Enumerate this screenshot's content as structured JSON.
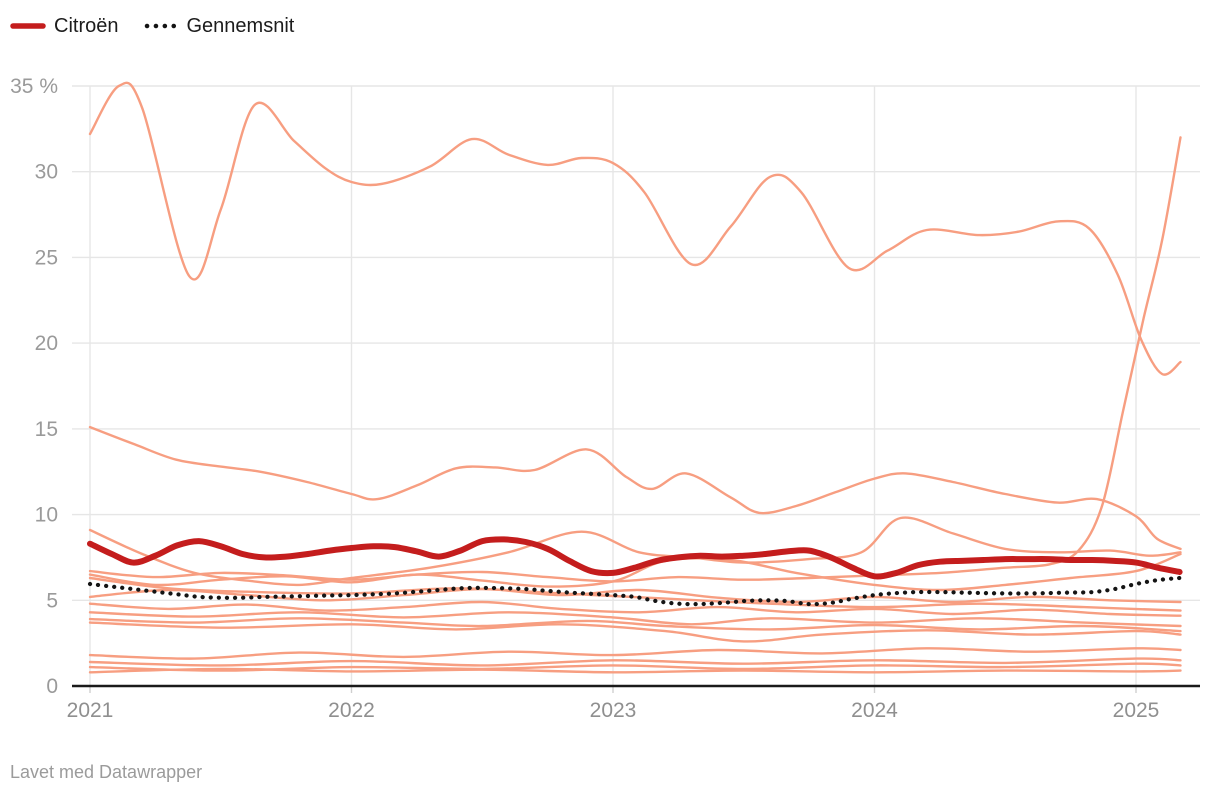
{
  "legend": {
    "items": [
      {
        "label": "Citroën",
        "swatch": "solid-line",
        "color": "#c41d1d"
      },
      {
        "label": "Gennemsnit",
        "swatch": "dotted-line",
        "color": "#141414"
      }
    ]
  },
  "footer": {
    "credit": "Lavet med Datawrapper"
  },
  "colors": {
    "highlight": "#c41d1d",
    "average": "#141414",
    "background_lines": "#f79e81",
    "gridline": "#e6e6e6",
    "axis": "#1a1a1a",
    "tick_label": "#9a9a9a"
  },
  "chart_data": {
    "type": "line",
    "title": "",
    "xlabel": "",
    "ylabel": "",
    "y_axis": {
      "unit": "%",
      "range": [
        0,
        35
      ],
      "ticks": [
        0,
        5,
        10,
        15,
        20,
        25,
        30,
        35
      ],
      "labels": [
        "0",
        "5",
        "10",
        "15",
        "20",
        "25",
        "30",
        "35 %"
      ],
      "grid": true
    },
    "x_axis": {
      "range": [
        2021.0,
        2025.25
      ],
      "ticks": [
        2021,
        2022,
        2023,
        2024,
        2025
      ],
      "labels": [
        "2021",
        "2022",
        "2023",
        "2024",
        "2025"
      ]
    },
    "legend_position": "top-left",
    "series": [
      {
        "name": "Citroën",
        "role": "highlight",
        "start": 2021.0,
        "step_months": 1,
        "values": [
          8.3,
          7.7,
          7.2,
          7.6,
          8.2,
          8.45,
          8.15,
          7.7,
          7.5,
          7.55,
          7.7,
          7.9,
          8.05,
          8.15,
          8.1,
          7.85,
          7.55,
          7.9,
          8.45,
          8.55,
          8.4,
          8.0,
          7.3,
          6.7,
          6.6,
          6.9,
          7.3,
          7.5,
          7.6,
          7.55,
          7.6,
          7.7,
          7.85,
          7.9,
          7.5,
          6.9,
          6.4,
          6.6,
          7.05,
          7.25,
          7.3,
          7.35,
          7.4,
          7.4,
          7.4,
          7.35,
          7.35,
          7.3,
          7.2,
          6.9,
          6.65
        ]
      },
      {
        "name": "Gennemsnit",
        "role": "average",
        "start": 2021.0,
        "step_months": 1,
        "values": [
          5.95,
          5.8,
          5.65,
          5.5,
          5.35,
          5.2,
          5.15,
          5.15,
          5.2,
          5.22,
          5.25,
          5.28,
          5.3,
          5.35,
          5.4,
          5.5,
          5.6,
          5.7,
          5.72,
          5.7,
          5.65,
          5.55,
          5.45,
          5.38,
          5.3,
          5.2,
          4.95,
          4.8,
          4.78,
          4.85,
          4.95,
          5.0,
          4.95,
          4.78,
          4.85,
          5.1,
          5.3,
          5.42,
          5.48,
          5.48,
          5.45,
          5.42,
          5.4,
          5.4,
          5.42,
          5.45,
          5.48,
          5.65,
          5.95,
          6.18,
          6.3
        ]
      }
    ],
    "background_series": [
      {
        "name": "other-1",
        "points": [
          [
            2021.0,
            32.2
          ],
          [
            2021.11,
            35.0
          ],
          [
            2021.2,
            33.7
          ],
          [
            2021.38,
            23.9
          ],
          [
            2021.5,
            27.8
          ],
          [
            2021.63,
            33.9
          ],
          [
            2021.78,
            31.8
          ],
          [
            2021.9,
            30.2
          ],
          [
            2022.0,
            29.4
          ],
          [
            2022.12,
            29.3
          ],
          [
            2022.3,
            30.3
          ],
          [
            2022.46,
            31.9
          ],
          [
            2022.6,
            31.0
          ],
          [
            2022.75,
            30.4
          ],
          [
            2022.88,
            30.8
          ],
          [
            2023.0,
            30.5
          ],
          [
            2023.12,
            28.8
          ],
          [
            2023.3,
            24.6
          ],
          [
            2023.45,
            26.8
          ],
          [
            2023.6,
            29.7
          ],
          [
            2023.72,
            28.8
          ],
          [
            2023.9,
            24.4
          ],
          [
            2024.05,
            25.4
          ],
          [
            2024.2,
            26.6
          ],
          [
            2024.4,
            26.3
          ],
          [
            2024.55,
            26.5
          ],
          [
            2024.7,
            27.1
          ],
          [
            2024.82,
            26.7
          ],
          [
            2024.93,
            24.0
          ],
          [
            2025.02,
            20.2
          ],
          [
            2025.1,
            18.2
          ],
          [
            2025.17,
            18.9
          ]
        ]
      },
      {
        "name": "other-2",
        "points": [
          [
            2021.0,
            15.1
          ],
          [
            2021.17,
            14.1
          ],
          [
            2021.33,
            13.2
          ],
          [
            2021.5,
            12.8
          ],
          [
            2021.65,
            12.5
          ],
          [
            2021.83,
            11.9
          ],
          [
            2022.0,
            11.2
          ],
          [
            2022.1,
            10.9
          ],
          [
            2022.25,
            11.7
          ],
          [
            2022.4,
            12.7
          ],
          [
            2022.55,
            12.75
          ],
          [
            2022.7,
            12.6
          ],
          [
            2022.9,
            13.8
          ],
          [
            2023.05,
            12.2
          ],
          [
            2023.15,
            11.5
          ],
          [
            2023.28,
            12.4
          ],
          [
            2023.45,
            11.0
          ],
          [
            2023.56,
            10.1
          ],
          [
            2023.7,
            10.5
          ],
          [
            2023.85,
            11.3
          ],
          [
            2024.0,
            12.1
          ],
          [
            2024.12,
            12.4
          ],
          [
            2024.3,
            11.9
          ],
          [
            2024.5,
            11.2
          ],
          [
            2024.7,
            10.7
          ],
          [
            2024.85,
            10.9
          ],
          [
            2025.0,
            9.9
          ],
          [
            2025.08,
            8.6
          ],
          [
            2025.17,
            8.0
          ]
        ]
      },
      {
        "name": "other-3",
        "points": [
          [
            2021.0,
            6.7
          ],
          [
            2021.25,
            6.35
          ],
          [
            2021.5,
            6.6
          ],
          [
            2021.75,
            6.45
          ],
          [
            2022.0,
            6.2
          ],
          [
            2022.25,
            6.5
          ],
          [
            2022.5,
            6.65
          ],
          [
            2022.75,
            6.35
          ],
          [
            2023.0,
            6.1
          ],
          [
            2023.25,
            6.35
          ],
          [
            2023.5,
            6.2
          ],
          [
            2023.75,
            6.3
          ],
          [
            2024.0,
            6.45
          ],
          [
            2024.25,
            6.6
          ],
          [
            2024.5,
            6.9
          ],
          [
            2024.67,
            7.1
          ],
          [
            2024.78,
            7.9
          ],
          [
            2024.87,
            10.5
          ],
          [
            2024.95,
            16.0
          ],
          [
            2025.03,
            21.5
          ],
          [
            2025.1,
            26.0
          ],
          [
            2025.17,
            32.0
          ]
        ]
      },
      {
        "name": "other-4",
        "points": [
          [
            2021.0,
            9.1
          ],
          [
            2021.2,
            7.7
          ],
          [
            2021.4,
            6.6
          ],
          [
            2021.6,
            6.15
          ],
          [
            2021.8,
            5.9
          ],
          [
            2022.0,
            6.3
          ],
          [
            2022.3,
            6.9
          ],
          [
            2022.6,
            7.8
          ],
          [
            2022.88,
            9.0
          ],
          [
            2023.1,
            7.8
          ],
          [
            2023.3,
            7.5
          ],
          [
            2023.5,
            7.2
          ],
          [
            2023.75,
            7.4
          ],
          [
            2023.95,
            7.8
          ],
          [
            2024.1,
            9.8
          ],
          [
            2024.3,
            8.9
          ],
          [
            2024.5,
            8.0
          ],
          [
            2024.7,
            7.8
          ],
          [
            2024.9,
            7.9
          ],
          [
            2025.05,
            7.6
          ],
          [
            2025.17,
            7.8
          ]
        ]
      },
      {
        "name": "other-5",
        "points": [
          [
            2021.0,
            6.5
          ],
          [
            2021.25,
            5.9
          ],
          [
            2021.5,
            6.2
          ],
          [
            2021.75,
            6.4
          ],
          [
            2022.0,
            6.05
          ],
          [
            2022.25,
            6.5
          ],
          [
            2022.5,
            6.15
          ],
          [
            2022.75,
            5.8
          ],
          [
            2023.0,
            6.1
          ],
          [
            2023.2,
            7.3
          ],
          [
            2023.45,
            7.35
          ],
          [
            2023.7,
            6.6
          ],
          [
            2024.0,
            5.9
          ],
          [
            2024.25,
            5.6
          ],
          [
            2024.5,
            5.9
          ],
          [
            2024.75,
            6.3
          ],
          [
            2025.0,
            6.7
          ],
          [
            2025.17,
            7.7
          ]
        ]
      },
      {
        "name": "other-6",
        "points": [
          [
            2021.0,
            6.3
          ],
          [
            2021.3,
            5.7
          ],
          [
            2021.6,
            5.5
          ],
          [
            2022.0,
            5.4
          ],
          [
            2022.4,
            5.7
          ],
          [
            2022.8,
            5.4
          ],
          [
            2023.2,
            5.1
          ],
          [
            2023.6,
            4.8
          ],
          [
            2024.0,
            4.6
          ],
          [
            2024.4,
            4.8
          ],
          [
            2024.8,
            4.6
          ],
          [
            2025.17,
            4.4
          ]
        ]
      },
      {
        "name": "other-7",
        "points": [
          [
            2021.0,
            5.2
          ],
          [
            2021.3,
            5.6
          ],
          [
            2021.6,
            5.3
          ],
          [
            2021.9,
            5.0
          ],
          [
            2022.2,
            5.3
          ],
          [
            2022.5,
            5.65
          ],
          [
            2022.8,
            5.3
          ],
          [
            2023.1,
            5.6
          ],
          [
            2023.4,
            5.15
          ],
          [
            2023.7,
            4.9
          ],
          [
            2024.0,
            5.2
          ],
          [
            2024.3,
            4.9
          ],
          [
            2024.6,
            5.2
          ],
          [
            2024.9,
            5.0
          ],
          [
            2025.17,
            4.9
          ]
        ]
      },
      {
        "name": "other-8",
        "points": [
          [
            2021.0,
            4.8
          ],
          [
            2021.3,
            4.5
          ],
          [
            2021.6,
            4.75
          ],
          [
            2021.9,
            4.4
          ],
          [
            2022.2,
            4.6
          ],
          [
            2022.5,
            4.9
          ],
          [
            2022.8,
            4.5
          ],
          [
            2023.1,
            4.3
          ],
          [
            2023.4,
            4.6
          ],
          [
            2023.7,
            4.3
          ],
          [
            2024.0,
            4.5
          ],
          [
            2024.3,
            4.2
          ],
          [
            2024.6,
            4.45
          ],
          [
            2024.9,
            4.2
          ],
          [
            2025.17,
            4.1
          ]
        ]
      },
      {
        "name": "other-9",
        "points": [
          [
            2021.0,
            4.3
          ],
          [
            2021.4,
            4.05
          ],
          [
            2021.8,
            4.3
          ],
          [
            2022.2,
            4.0
          ],
          [
            2022.6,
            4.3
          ],
          [
            2023.0,
            4.0
          ],
          [
            2023.3,
            3.6
          ],
          [
            2023.6,
            3.95
          ],
          [
            2024.0,
            3.7
          ],
          [
            2024.4,
            3.95
          ],
          [
            2024.8,
            3.7
          ],
          [
            2025.17,
            3.5
          ]
        ]
      },
      {
        "name": "other-10",
        "points": [
          [
            2021.0,
            3.9
          ],
          [
            2021.4,
            3.7
          ],
          [
            2021.8,
            3.95
          ],
          [
            2022.2,
            3.7
          ],
          [
            2022.5,
            3.5
          ],
          [
            2022.9,
            3.8
          ],
          [
            2023.2,
            3.5
          ],
          [
            2023.6,
            3.3
          ],
          [
            2024.0,
            3.55
          ],
          [
            2024.4,
            3.3
          ],
          [
            2024.8,
            3.5
          ],
          [
            2025.17,
            3.2
          ]
        ]
      },
      {
        "name": "other-11",
        "points": [
          [
            2021.0,
            3.7
          ],
          [
            2021.5,
            3.4
          ],
          [
            2022.0,
            3.6
          ],
          [
            2022.4,
            3.3
          ],
          [
            2022.8,
            3.6
          ],
          [
            2023.2,
            3.2
          ],
          [
            2023.5,
            2.6
          ],
          [
            2023.8,
            3.0
          ],
          [
            2024.2,
            3.25
          ],
          [
            2024.6,
            3.0
          ],
          [
            2025.0,
            3.2
          ],
          [
            2025.17,
            3.0
          ]
        ]
      },
      {
        "name": "other-12",
        "points": [
          [
            2021.0,
            1.8
          ],
          [
            2021.4,
            1.6
          ],
          [
            2021.8,
            1.95
          ],
          [
            2022.2,
            1.7
          ],
          [
            2022.6,
            2.0
          ],
          [
            2023.0,
            1.8
          ],
          [
            2023.4,
            2.1
          ],
          [
            2023.8,
            1.9
          ],
          [
            2024.2,
            2.2
          ],
          [
            2024.6,
            2.0
          ],
          [
            2025.0,
            2.2
          ],
          [
            2025.17,
            2.1
          ]
        ]
      },
      {
        "name": "other-13",
        "points": [
          [
            2021.0,
            1.4
          ],
          [
            2021.5,
            1.2
          ],
          [
            2022.0,
            1.45
          ],
          [
            2022.5,
            1.2
          ],
          [
            2023.0,
            1.5
          ],
          [
            2023.5,
            1.3
          ],
          [
            2024.0,
            1.5
          ],
          [
            2024.5,
            1.35
          ],
          [
            2025.0,
            1.6
          ],
          [
            2025.17,
            1.5
          ]
        ]
      },
      {
        "name": "other-14",
        "points": [
          [
            2021.0,
            1.1
          ],
          [
            2021.5,
            0.9
          ],
          [
            2022.0,
            1.1
          ],
          [
            2022.5,
            1.0
          ],
          [
            2023.0,
            1.2
          ],
          [
            2023.5,
            1.0
          ],
          [
            2024.0,
            1.2
          ],
          [
            2024.5,
            1.1
          ],
          [
            2025.0,
            1.3
          ],
          [
            2025.17,
            1.2
          ]
        ]
      },
      {
        "name": "other-15",
        "points": [
          [
            2021.0,
            0.8
          ],
          [
            2021.5,
            1.0
          ],
          [
            2022.0,
            0.85
          ],
          [
            2022.5,
            0.95
          ],
          [
            2023.0,
            0.8
          ],
          [
            2023.5,
            0.9
          ],
          [
            2024.0,
            0.8
          ],
          [
            2024.5,
            0.9
          ],
          [
            2025.0,
            0.85
          ],
          [
            2025.17,
            0.9
          ]
        ]
      }
    ]
  }
}
